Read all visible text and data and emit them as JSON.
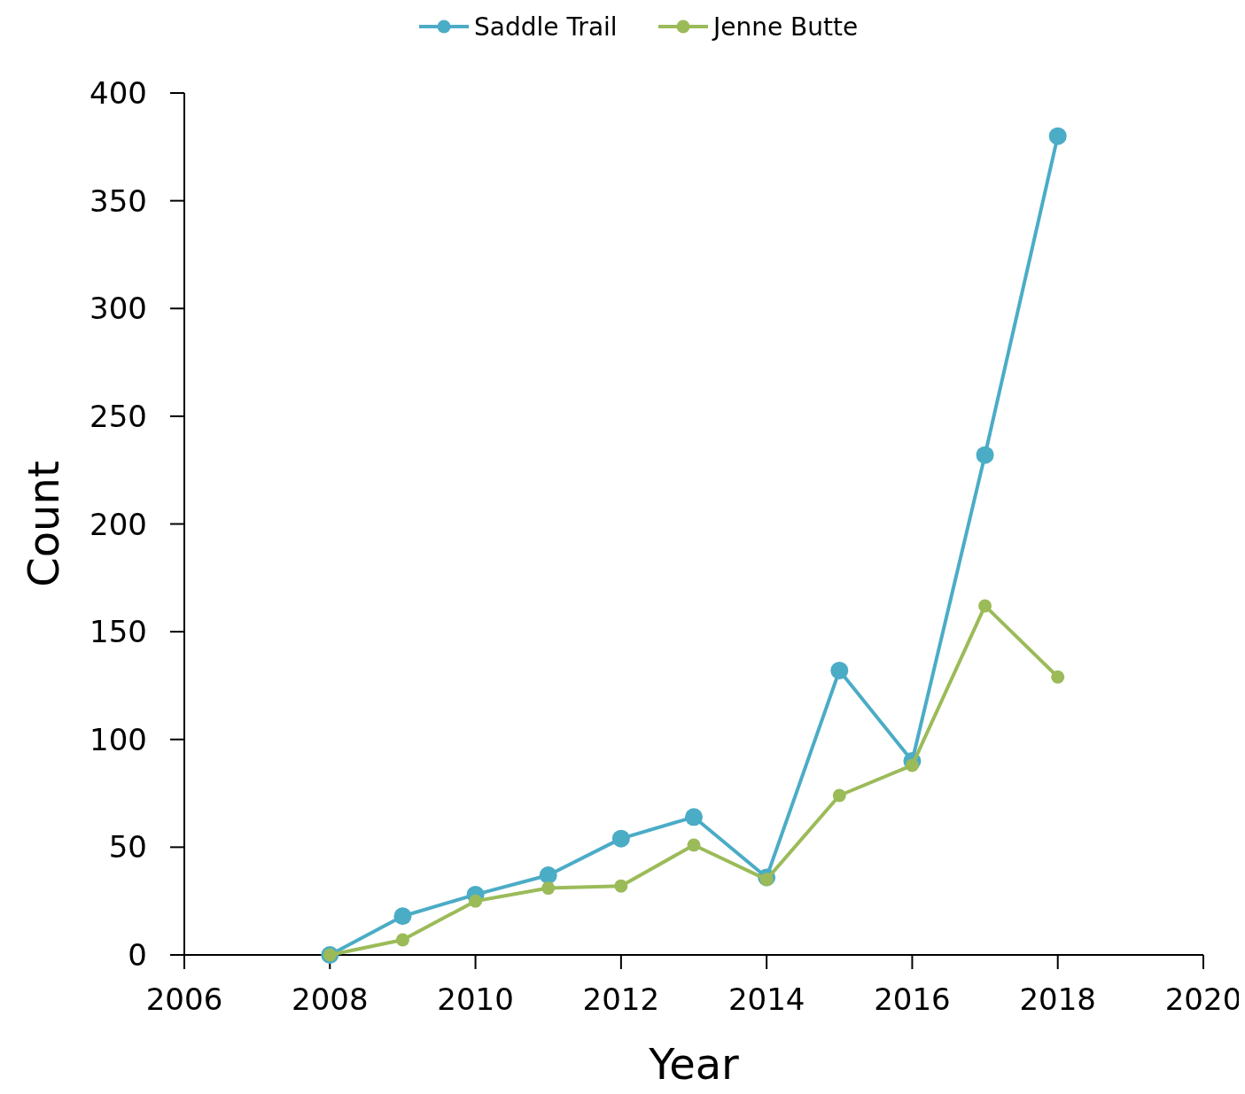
{
  "chart_data": {
    "type": "line",
    "xlabel": "Year",
    "ylabel": "Count",
    "x": [
      2008,
      2009,
      2010,
      2011,
      2012,
      2013,
      2014,
      2015,
      2016,
      2017,
      2018
    ],
    "series": [
      {
        "name": "Saddle Trail",
        "color": "#4bacc6",
        "values": [
          0,
          18,
          28,
          37,
          54,
          64,
          36,
          132,
          90,
          232,
          380
        ]
      },
      {
        "name": "Jenne Butte",
        "color": "#9bbb59",
        "values": [
          0,
          7,
          25,
          31,
          32,
          51,
          35,
          74,
          88,
          162,
          129
        ]
      }
    ],
    "xlim": [
      2006,
      2020
    ],
    "xticks": [
      2006,
      2008,
      2010,
      2012,
      2014,
      2016,
      2018,
      2020
    ],
    "ylim": [
      0,
      400
    ],
    "yticks": [
      0,
      50,
      100,
      150,
      200,
      250,
      300,
      350,
      400
    ],
    "grid": false,
    "legend": "top",
    "marker": "circle",
    "line_style": "solid"
  }
}
